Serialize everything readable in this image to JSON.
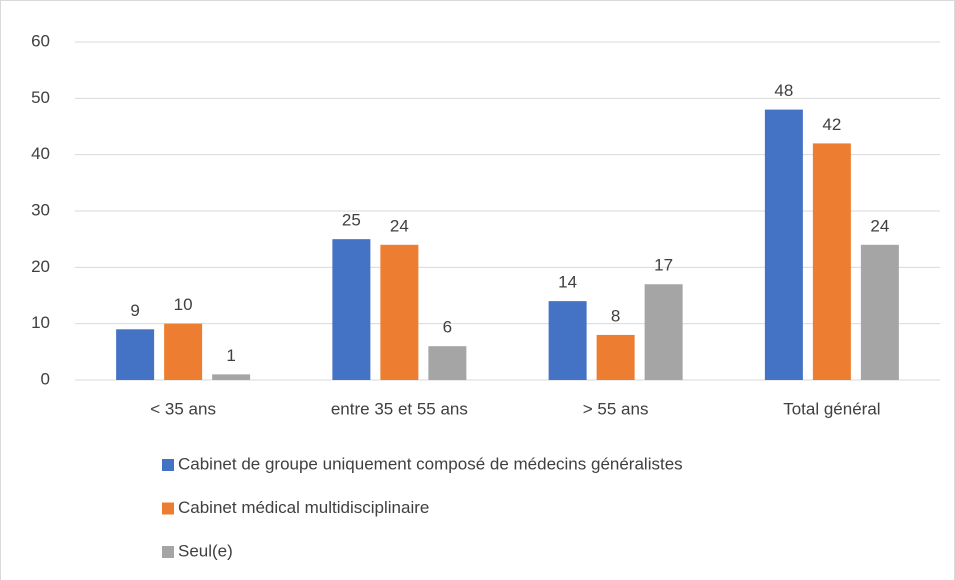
{
  "chart_data": {
    "type": "bar",
    "categories": [
      "< 35 ans",
      "entre 35 et 55 ans",
      "> 55 ans",
      "Total général"
    ],
    "series": [
      {
        "name": "Cabinet de groupe uniquement composé de médecins généralistes",
        "color": "#4472c4",
        "values": [
          9,
          25,
          14,
          48
        ]
      },
      {
        "name": "Cabinet médical multidisciplinaire",
        "color": "#ed7d31",
        "values": [
          10,
          24,
          8,
          42
        ]
      },
      {
        "name": "Seul(e)",
        "color": "#a5a5a5",
        "values": [
          1,
          6,
          17,
          24
        ]
      }
    ],
    "ylim": [
      0,
      60
    ],
    "yticks": [
      0,
      10,
      20,
      30,
      40,
      50,
      60
    ],
    "grid": true,
    "legend": "bottom"
  }
}
